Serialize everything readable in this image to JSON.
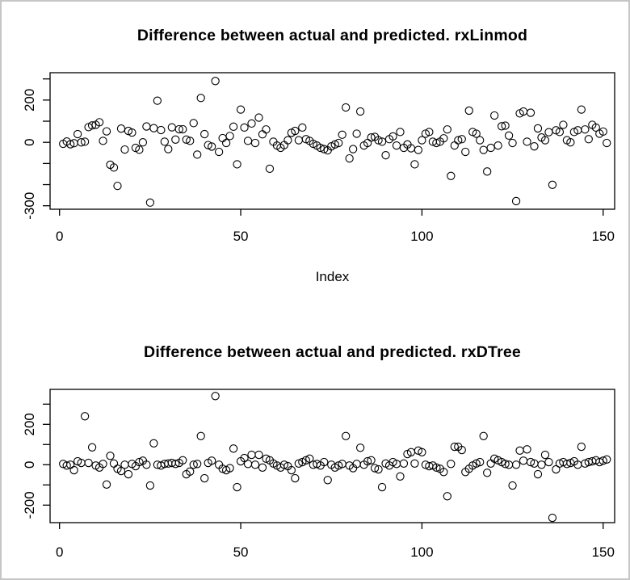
{
  "window": {
    "background": "#ffffff",
    "border_color": "#c6c6c6",
    "axis_color": "#000000",
    "marker_color": "#000000"
  },
  "chart_data": [
    {
      "type": "scatter",
      "title": "Difference between actual and predicted. rxLinmod",
      "xlabel": "Index",
      "ylabel": "",
      "marker": "open-circle",
      "legend": "none",
      "grid": false,
      "x_ticks": [
        0,
        50,
        100,
        150
      ],
      "y_ticks_all": [
        300,
        200,
        100,
        0,
        -100,
        -200,
        -300
      ],
      "y_ticks_labeled": [
        200,
        0,
        -300
      ],
      "xlim": [
        -5,
        158
      ],
      "ylim": [
        -320,
        330
      ],
      "x_start_index": 1,
      "values": [
        -7,
        4,
        -9,
        -4,
        39,
        0,
        3,
        72,
        80,
        83,
        95,
        7,
        52,
        -106,
        -119,
        -206,
        65,
        -34,
        54,
        46,
        -26,
        -35,
        0,
        75,
        -285,
        67,
        197,
        58,
        3,
        -32,
        71,
        13,
        62,
        62,
        13,
        7,
        91,
        -58,
        210,
        39,
        -13,
        -20,
        290,
        -45,
        20,
        -3,
        30,
        74,
        -104,
        155,
        70,
        7,
        89,
        -3,
        117,
        38,
        61,
        -125,
        3,
        -15,
        -26,
        -13,
        10,
        45,
        54,
        10,
        70,
        15,
        7,
        -7,
        -15,
        -26,
        -32,
        -38,
        -19,
        -10,
        -3,
        36,
        165,
        -76,
        -32,
        41,
        146,
        -15,
        -3,
        23,
        26,
        10,
        3,
        -61,
        15,
        28,
        -15,
        49,
        -26,
        -10,
        -28,
        -104,
        -36,
        10,
        41,
        49,
        3,
        -3,
        3,
        19,
        61,
        -159,
        -15,
        10,
        15,
        -45,
        150,
        49,
        41,
        10,
        -36,
        -138,
        -26,
        127,
        -15,
        76,
        79,
        32,
        -3,
        -278,
        137,
        146,
        3,
        140,
        -19,
        66,
        23,
        10,
        48,
        -201,
        57,
        49,
        83,
        10,
        0,
        49,
        57,
        155,
        61,
        15,
        83,
        70,
        41,
        51,
        -3
      ]
    },
    {
      "type": "scatter",
      "title": "Difference between actual and predicted. rxDTree",
      "xlabel": "",
      "ylabel": "",
      "marker": "open-circle",
      "legend": "none",
      "grid": false,
      "x_ticks": [
        0,
        50,
        100,
        150
      ],
      "y_ticks_all": [
        300,
        200,
        100,
        0,
        -100,
        -200
      ],
      "y_ticks_labeled": [
        200,
        0,
        -200
      ],
      "xlim": [
        -5,
        158
      ],
      "ylim": [
        -290,
        370
      ],
      "x_start_index": 1,
      "values": [
        4,
        -4,
        0,
        -27,
        17,
        9,
        240,
        9,
        86,
        -4,
        -14,
        4,
        -98,
        44,
        6,
        -20,
        -31,
        0,
        -47,
        4,
        -7,
        13,
        20,
        0,
        -103,
        106,
        0,
        -4,
        4,
        6,
        9,
        4,
        9,
        22,
        -47,
        -34,
        0,
        4,
        142,
        -67,
        9,
        20,
        340,
        0,
        -20,
        -27,
        -17,
        80,
        -111,
        17,
        33,
        4,
        49,
        0,
        49,
        -14,
        30,
        22,
        6,
        -4,
        -14,
        0,
        -7,
        -27,
        -67,
        6,
        13,
        22,
        30,
        0,
        4,
        -4,
        13,
        -76,
        0,
        -14,
        -4,
        4,
        142,
        -4,
        -17,
        4,
        84,
        0,
        17,
        22,
        -17,
        -23,
        -111,
        6,
        -4,
        13,
        4,
        -58,
        6,
        53,
        62,
        6,
        70,
        62,
        0,
        -7,
        -4,
        -14,
        -20,
        -36,
        -156,
        4,
        89,
        89,
        73,
        -36,
        -20,
        -4,
        6,
        13,
        142,
        -40,
        6,
        30,
        22,
        13,
        4,
        0,
        -103,
        0,
        70,
        20,
        76,
        13,
        6,
        -47,
        0,
        49,
        13,
        -263,
        -23,
        6,
        13,
        4,
        9,
        17,
        0,
        89,
        6,
        13,
        17,
        22,
        13,
        20,
        26
      ]
    }
  ]
}
